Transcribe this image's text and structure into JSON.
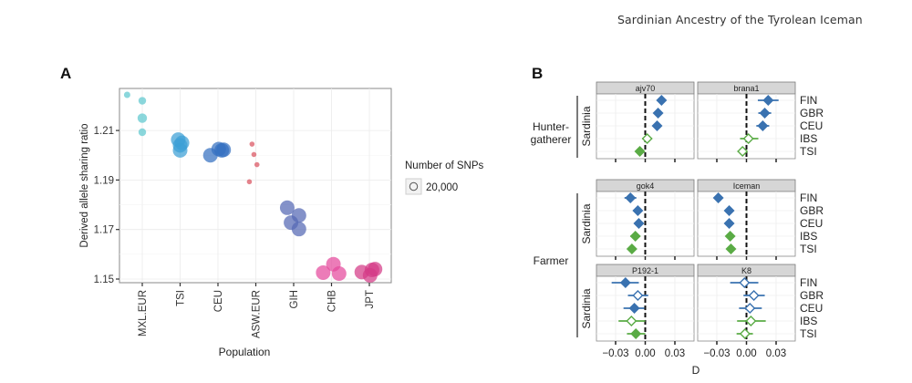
{
  "running_head": "Sardinian Ancestry of the Tyrolean Iceman",
  "chart_data": [
    {
      "panel_label": "A",
      "type": "scatter",
      "title": "",
      "xlabel": "Population",
      "ylabel": "Derived allele sharing ratio",
      "ylim": [
        1.1475,
        1.2265
      ],
      "yticks": [
        1.15,
        1.17,
        1.19,
        1.21
      ],
      "ytick_labels": [
        "1.15",
        "1.17",
        "1.19",
        "1.21"
      ],
      "categories": [
        "MXL.EUR",
        "TSI",
        "CEU",
        "ASW.EUR",
        "GIH",
        "CHB",
        "JPT"
      ],
      "grid": true,
      "legend": {
        "title": "Number of SNPs",
        "entries": [
          "20,000"
        ],
        "position": "right"
      },
      "series": [
        {
          "name": "MXL.EUR",
          "color": "#5ec8cf",
          "snps": "small",
          "points": [
            {
              "jitter": -0.4,
              "y": 1.2244
            },
            {
              "jitter": 0.0,
              "y": 1.222
            },
            {
              "jitter": 0.0,
              "y": 1.215
            },
            {
              "jitter": 0.0,
              "y": 1.2093
            }
          ]
        },
        {
          "name": "TSI",
          "color": "#3c9fd6",
          "snps": "large",
          "points": [
            {
              "jitter": -0.05,
              "y": 1.2063
            },
            {
              "jitter": 0.0,
              "y": 1.204
            },
            {
              "jitter": 0.0,
              "y": 1.202
            },
            {
              "jitter": 0.05,
              "y": 1.205
            }
          ]
        },
        {
          "name": "CEU",
          "color": "#3470c0",
          "snps": "large",
          "points": [
            {
              "jitter": -0.2,
              "y": 1.2
            },
            {
              "jitter": 0.02,
              "y": 1.2025
            },
            {
              "jitter": 0.15,
              "y": 1.2022
            },
            {
              "jitter": 0.1,
              "y": 1.202
            }
          ]
        },
        {
          "name": "ASW.EUR",
          "color": "#d9535f",
          "snps": "tiny",
          "points": [
            {
              "jitter": -0.1,
              "y": 1.2045
            },
            {
              "jitter": -0.05,
              "y": 1.2003
            },
            {
              "jitter": 0.03,
              "y": 1.1962
            },
            {
              "jitter": -0.17,
              "y": 1.1893
            }
          ]
        },
        {
          "name": "GIH",
          "color": "#5568b4",
          "snps": "large",
          "points": [
            {
              "jitter": -0.17,
              "y": 1.1788
            },
            {
              "jitter": 0.14,
              "y": 1.1757
            },
            {
              "jitter": -0.07,
              "y": 1.1728
            },
            {
              "jitter": 0.14,
              "y": 1.1702
            }
          ]
        },
        {
          "name": "CHB",
          "color": "#e44a9c",
          "snps": "large",
          "points": [
            {
              "jitter": -0.22,
              "y": 1.1526
            },
            {
              "jitter": 0.05,
              "y": 1.156
            },
            {
              "jitter": 0.2,
              "y": 1.1522
            }
          ]
        },
        {
          "name": "JPT",
          "color": "#d43a86",
          "snps": "large",
          "points": [
            {
              "jitter": -0.2,
              "y": 1.1528
            },
            {
              "jitter": 0.07,
              "y": 1.1537
            },
            {
              "jitter": 0.02,
              "y": 1.1515
            },
            {
              "jitter": 0.15,
              "y": 1.154
            }
          ]
        }
      ]
    },
    {
      "panel_label": "B",
      "type": "scatter",
      "subtype": "forest-plot",
      "xlabel": "D",
      "xlim": [
        -0.0425,
        0.0425
      ],
      "xticks": [
        -0.03,
        0.0,
        0.03
      ],
      "xtick_labels": [
        "−0.03",
        "0.00",
        "0.03"
      ],
      "reference_line": 0.0,
      "grid": true,
      "populations": [
        "FIN",
        "GBR",
        "CEU",
        "IBS",
        "TSI"
      ],
      "colors": {
        "FIN": "#3a72b0",
        "GBR": "#3a72b0",
        "CEU": "#3a72b0",
        "IBS": "#5aab45",
        "TSI": "#5aab45"
      },
      "groups": [
        {
          "label_lines": [
            "Hunter-",
            "gatherer"
          ],
          "row_label": "Sardinia",
          "facets": [
            {
              "name": "ajv70",
              "points": [
                {
                  "pop": "FIN",
                  "d": 0.0165,
                  "lo": 0.0125,
                  "hi": 0.0205,
                  "significant": true
                },
                {
                  "pop": "GBR",
                  "d": 0.013,
                  "lo": 0.01,
                  "hi": 0.016,
                  "significant": true
                },
                {
                  "pop": "CEU",
                  "d": 0.012,
                  "lo": 0.009,
                  "hi": 0.015,
                  "significant": true
                },
                {
                  "pop": "IBS",
                  "d": 0.002,
                  "lo": -0.003,
                  "hi": 0.007,
                  "significant": false
                },
                {
                  "pop": "TSI",
                  "d": -0.0055,
                  "lo": -0.008,
                  "hi": -0.003,
                  "significant": true
                }
              ]
            },
            {
              "name": "brana1",
              "points": [
                {
                  "pop": "FIN",
                  "d": 0.022,
                  "lo": 0.0115,
                  "hi": 0.0325,
                  "significant": true
                },
                {
                  "pop": "GBR",
                  "d": 0.0185,
                  "lo": 0.012,
                  "hi": 0.025,
                  "significant": true
                },
                {
                  "pop": "CEU",
                  "d": 0.0165,
                  "lo": 0.01,
                  "hi": 0.023,
                  "significant": true
                },
                {
                  "pop": "IBS",
                  "d": 0.002,
                  "lo": -0.0065,
                  "hi": 0.012,
                  "significant": false
                },
                {
                  "pop": "TSI",
                  "d": -0.004,
                  "lo": -0.009,
                  "hi": 0.001,
                  "significant": false
                }
              ]
            }
          ]
        },
        {
          "label_lines": [
            "Farmer"
          ],
          "row_label": "Sardinia",
          "facets": [
            {
              "name": "gok4",
              "points": [
                {
                  "pop": "FIN",
                  "d": -0.015,
                  "lo": -0.021,
                  "hi": -0.009,
                  "significant": true
                },
                {
                  "pop": "GBR",
                  "d": -0.0075,
                  "lo": -0.011,
                  "hi": -0.004,
                  "significant": true
                },
                {
                  "pop": "CEU",
                  "d": -0.0065,
                  "lo": -0.01,
                  "hi": -0.003,
                  "significant": true
                },
                {
                  "pop": "IBS",
                  "d": -0.01,
                  "lo": -0.015,
                  "hi": -0.005,
                  "significant": true
                },
                {
                  "pop": "TSI",
                  "d": -0.0135,
                  "lo": -0.017,
                  "hi": -0.01,
                  "significant": true
                }
              ]
            },
            {
              "name": "Iceman",
              "points": [
                {
                  "pop": "FIN",
                  "d": -0.0285,
                  "lo": -0.031,
                  "hi": -0.026,
                  "significant": true
                },
                {
                  "pop": "GBR",
                  "d": -0.0175,
                  "lo": -0.02,
                  "hi": -0.015,
                  "significant": true
                },
                {
                  "pop": "CEU",
                  "d": -0.0175,
                  "lo": -0.02,
                  "hi": -0.015,
                  "significant": true
                },
                {
                  "pop": "IBS",
                  "d": -0.0165,
                  "lo": -0.0195,
                  "hi": -0.0135,
                  "significant": true
                },
                {
                  "pop": "TSI",
                  "d": -0.0157,
                  "lo": -0.018,
                  "hi": -0.013,
                  "significant": true
                }
              ]
            }
          ]
        },
        {
          "label_lines": [],
          "row_label": "Sardinia",
          "facets": [
            {
              "name": "P192-1",
              "points": [
                {
                  "pop": "FIN",
                  "d": -0.02,
                  "lo": -0.034,
                  "hi": -0.0065,
                  "significant": true
                },
                {
                  "pop": "GBR",
                  "d": -0.0075,
                  "lo": -0.0175,
                  "hi": 0.003,
                  "significant": false
                },
                {
                  "pop": "CEU",
                  "d": -0.011,
                  "lo": -0.022,
                  "hi": -0.001,
                  "significant": true
                },
                {
                  "pop": "IBS",
                  "d": -0.014,
                  "lo": -0.027,
                  "hi": 0.0,
                  "significant": false
                },
                {
                  "pop": "TSI",
                  "d": -0.0095,
                  "lo": -0.0185,
                  "hi": 0.0,
                  "significant": true
                }
              ]
            },
            {
              "name": "K8",
              "points": [
                {
                  "pop": "FIN",
                  "d": -0.002,
                  "lo": -0.0165,
                  "hi": 0.012,
                  "significant": false
                },
                {
                  "pop": "GBR",
                  "d": 0.0075,
                  "lo": -0.003,
                  "hi": 0.0185,
                  "significant": false
                },
                {
                  "pop": "CEU",
                  "d": 0.0035,
                  "lo": -0.0075,
                  "hi": 0.0155,
                  "significant": false
                },
                {
                  "pop": "IBS",
                  "d": 0.0045,
                  "lo": -0.0095,
                  "hi": 0.0195,
                  "significant": false
                },
                {
                  "pop": "TSI",
                  "d": -0.0015,
                  "lo": -0.01,
                  "hi": 0.0065,
                  "significant": false
                }
              ]
            }
          ]
        }
      ]
    }
  ]
}
